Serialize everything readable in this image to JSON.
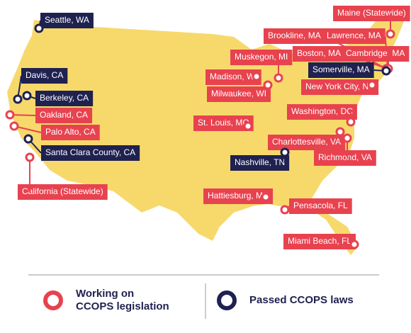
{
  "map": {
    "land_color": "#f7d96b",
    "locations": [
      {
        "label": "Seattle, WA",
        "color": "#1f2150"
      },
      {
        "label": "Maine (Statewide)",
        "color": "#e8424f"
      },
      {
        "label": "Brookline, MA",
        "color": "#e8424f"
      },
      {
        "label": "Lawrence, MA",
        "color": "#e8424f"
      },
      {
        "label": "Muskegon, MI",
        "color": "#e8424f"
      },
      {
        "label": "Boston, MA",
        "color": "#e8424f"
      },
      {
        "label": "Cambridge, MA",
        "color": "#e8424f"
      },
      {
        "label": "Somerville, MA",
        "color": "#1f2150"
      },
      {
        "label": "Davis, CA",
        "color": "#1f2150"
      },
      {
        "label": "Madison, WI",
        "color": "#e8424f"
      },
      {
        "label": "Milwaukee, WI",
        "color": "#e8424f"
      },
      {
        "label": "New York City, NY",
        "color": "#e8424f"
      },
      {
        "label": "Berkeley, CA",
        "color": "#1f2150"
      },
      {
        "label": "Washington, DC",
        "color": "#e8424f"
      },
      {
        "label": "Oakland, CA",
        "color": "#e8424f"
      },
      {
        "label": "St. Louis, MO",
        "color": "#e8424f"
      },
      {
        "label": "Palo Alto, CA",
        "color": "#e8424f"
      },
      {
        "label": "Charlottesville, VA",
        "color": "#e8424f"
      },
      {
        "label": "Santa Clara County, CA",
        "color": "#1f2150"
      },
      {
        "label": "Richmond, VA",
        "color": "#e8424f"
      },
      {
        "label": "Nashville, TN",
        "color": "#1f2150"
      },
      {
        "label": "California (Statewide)",
        "color": "#e8424f"
      },
      {
        "label": "Hattiesburg, MS",
        "color": "#e8424f"
      },
      {
        "label": "Pensacola, FL",
        "color": "#e8424f"
      },
      {
        "label": "Miami Beach, FL",
        "color": "#e8424f"
      }
    ]
  },
  "legend": {
    "items": [
      {
        "lines": [
          "Working on",
          "CCOPS legislation"
        ],
        "color": "#e8424f"
      },
      {
        "lines": [
          "Passed CCOPS laws"
        ],
        "color": "#1f2150"
      }
    ]
  }
}
